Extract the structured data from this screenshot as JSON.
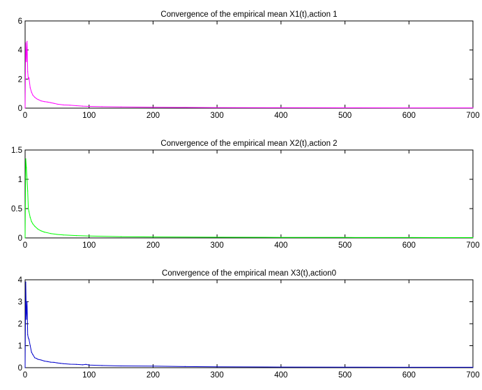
{
  "chart_data": [
    {
      "type": "line",
      "title": "Convergence of the empirical mean X1(t),action 1",
      "xlabel": "",
      "ylabel": "",
      "xlim": [
        0,
        700
      ],
      "ylim": [
        0,
        6
      ],
      "xticks": [
        0,
        100,
        200,
        300,
        400,
        500,
        600,
        700
      ],
      "yticks": [
        0,
        2,
        4,
        6
      ],
      "grid": false,
      "series": [
        {
          "color": "#ff00ff",
          "x": [
            0,
            1,
            2,
            3,
            4,
            5,
            6,
            8,
            10,
            12,
            15,
            18,
            20,
            25,
            30,
            35,
            40,
            45,
            50,
            60,
            70,
            80,
            90,
            100,
            120,
            150,
            200,
            250,
            300,
            400,
            500,
            600,
            700
          ],
          "y": [
            0,
            4.5,
            3.2,
            4.6,
            2.5,
            2.0,
            2.1,
            1.4,
            1.1,
            0.9,
            0.75,
            0.65,
            0.6,
            0.5,
            0.45,
            0.42,
            0.38,
            0.33,
            0.28,
            0.22,
            0.2,
            0.17,
            0.14,
            0.12,
            0.1,
            0.08,
            0.06,
            0.05,
            0.04,
            0.03,
            0.025,
            0.02,
            0.02
          ]
        }
      ]
    },
    {
      "type": "line",
      "title": "Convergence of the empirical mean X2(t),action 2",
      "xlabel": "",
      "ylabel": "",
      "xlim": [
        0,
        700
      ],
      "ylim": [
        0,
        1.5
      ],
      "xticks": [
        0,
        100,
        200,
        300,
        400,
        500,
        600,
        700
      ],
      "yticks": [
        0,
        0.5,
        1,
        1.5
      ],
      "grid": false,
      "series": [
        {
          "color": "#00ff00",
          "x": [
            0,
            1,
            2,
            3,
            4,
            5,
            6,
            8,
            10,
            12,
            15,
            20,
            25,
            30,
            40,
            50,
            60,
            80,
            100,
            150,
            200,
            300,
            400,
            500,
            600,
            700
          ],
          "y": [
            0,
            1.35,
            1.2,
            1.0,
            0.8,
            0.5,
            0.45,
            0.35,
            0.28,
            0.24,
            0.2,
            0.15,
            0.12,
            0.1,
            0.075,
            0.06,
            0.05,
            0.04,
            0.032,
            0.022,
            0.017,
            0.012,
            0.009,
            0.008,
            0.007,
            0.006
          ]
        }
      ]
    },
    {
      "type": "line",
      "title": "Convergence of the empirical mean X3(t),action0",
      "xlabel": "",
      "ylabel": "",
      "xlim": [
        0,
        700
      ],
      "ylim": [
        0,
        4
      ],
      "xticks": [
        0,
        100,
        200,
        300,
        400,
        500,
        600,
        700
      ],
      "yticks": [
        0,
        1,
        2,
        3,
        4
      ],
      "grid": false,
      "series": [
        {
          "color": "#0000cc",
          "x": [
            0,
            1,
            2,
            3,
            4,
            5,
            6,
            8,
            10,
            12,
            15,
            18,
            20,
            25,
            30,
            35,
            40,
            45,
            50,
            55,
            60,
            70,
            80,
            90,
            95,
            100,
            120,
            150,
            200,
            250,
            300,
            400,
            500,
            600,
            700
          ],
          "y": [
            0,
            3.9,
            2.2,
            3.0,
            1.5,
            1.35,
            1.3,
            1.0,
            0.7,
            0.6,
            0.45,
            0.42,
            0.38,
            0.35,
            0.3,
            0.28,
            0.25,
            0.24,
            0.22,
            0.2,
            0.18,
            0.16,
            0.15,
            0.13,
            0.15,
            0.12,
            0.1,
            0.08,
            0.07,
            0.05,
            0.04,
            0.03,
            0.025,
            0.02,
            0.02
          ]
        }
      ]
    }
  ]
}
